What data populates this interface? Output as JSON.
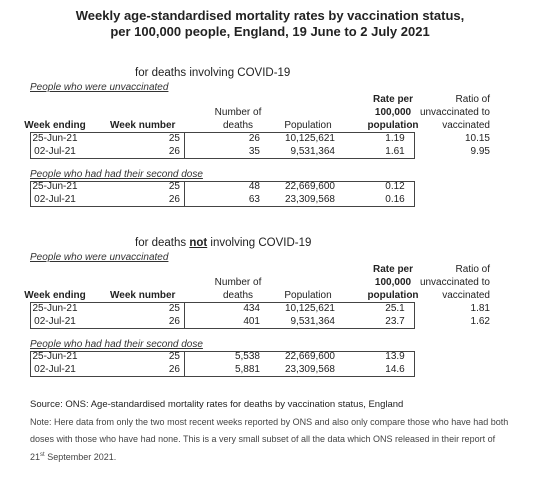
{
  "title": [
    "Weekly age-standardised mortality rates by vaccination status,",
    "per 100,000 people, England, 19 June to 2 July 2021"
  ],
  "sections": [
    {
      "heading": [
        "for deaths involving COVID-19"
      ],
      "unvaccinated_label": "People who were unvaccinated",
      "headers": [
        [
          "Week ending"
        ],
        [
          "Week number"
        ],
        [
          "Number of",
          "deaths"
        ],
        [
          "Population"
        ],
        [
          "Rate per",
          "100,000",
          "population"
        ],
        [
          "Ratio of",
          "unvaccinated to",
          "vaccinated"
        ]
      ],
      "unvaccinated_rows": [
        [
          "25-Jun-21",
          "25",
          "26",
          "10,125,621",
          "1.19",
          "10.15"
        ],
        [
          "02-Jul-21",
          "26",
          "35",
          "9,531,364",
          "1.61",
          "9.95"
        ]
      ],
      "vaccinated_label": "People who had had their second dose",
      "vaccinated_rows": [
        [
          "25-Jun-21",
          "25",
          "48",
          "22,669,600",
          "0.12"
        ],
        [
          "02-Jul-21",
          "26",
          "63",
          "23,309,568",
          "0.16"
        ]
      ]
    },
    {
      "heading": [
        "for deaths ",
        "not",
        " involving COVID-19"
      ],
      "unvaccinated_label": "People who were unvaccinated",
      "headers": [
        [
          "Week ending"
        ],
        [
          "Week number"
        ],
        [
          "Number of",
          "deaths"
        ],
        [
          "Population"
        ],
        [
          "Rate per",
          "100,000",
          "population"
        ],
        [
          "Ratio of",
          "unvaccinated to",
          "vaccinated"
        ]
      ],
      "unvaccinated_rows": [
        [
          "25-Jun-21",
          "25",
          "434",
          "10,125,621",
          "25.1",
          "1.81"
        ],
        [
          "02-Jul-21",
          "26",
          "401",
          "9,531,364",
          "23.7",
          "1.62"
        ]
      ],
      "vaccinated_label": "People who had had their second dose",
      "vaccinated_rows": [
        [
          "25-Jun-21",
          "25",
          "5,538",
          "22,669,600",
          "13.9"
        ],
        [
          "02-Jul-21",
          "26",
          "5,881",
          "23,309,568",
          "14.6"
        ]
      ]
    }
  ],
  "source": "Source: ONS: Age-standardised mortality rates for deaths by vaccination status, England",
  "note": [
    "Note: Here data from only the two most recent weeks reported by ONS and also only compare those who have had both doses with those who have had none. This is a very small subset of all the data which ONS released in their report of 21",
    "st",
    " September 2021."
  ]
}
